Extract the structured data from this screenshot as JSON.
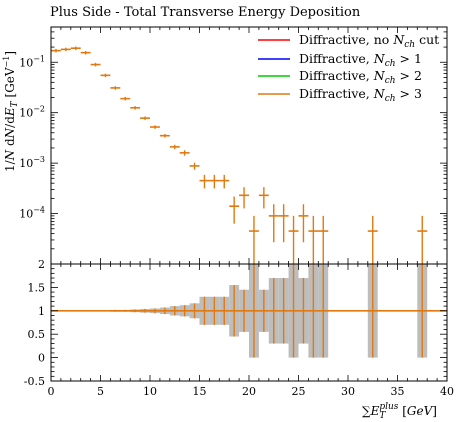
{
  "chart_data": {
    "type": "scatter",
    "title": "Plus Side - Total Transverse Energy Deposition",
    "xlabel": "∑E_T^plus [GeV]",
    "ylabel": "1/N dN/dE_T [GeV^-1]",
    "xlim": [
      0,
      40
    ],
    "ylim_main_log": [
      1e-05,
      0.5
    ],
    "ylim_ratio": [
      -0.5,
      2.0
    ],
    "x_ticks": [
      "0",
      "5",
      "10",
      "15",
      "20",
      "25",
      "30",
      "35",
      "40"
    ],
    "y_ticks_main": [
      "10^-4",
      "10^-3",
      "10^-2",
      "10^-1"
    ],
    "y_ticks_ratio": [
      "-0.5",
      "0",
      "0.5",
      "1",
      "1.5",
      "2"
    ],
    "legend_position": "top-right",
    "series": [
      {
        "name": "Diffractive, no N_ch cut",
        "color": "#ff0000"
      },
      {
        "name": "Diffractive, N_ch > 1",
        "color": "#0000ff"
      },
      {
        "name": "Diffractive, N_ch > 2",
        "color": "#00cc00"
      },
      {
        "name": "Diffractive, N_ch > 3",
        "color": "#e07a10"
      }
    ],
    "points": [
      {
        "x": 0.5,
        "y": 0.17,
        "rel_err": 0.0
      },
      {
        "x": 1.5,
        "y": 0.18,
        "rel_err": 0.0
      },
      {
        "x": 2.5,
        "y": 0.19,
        "rel_err": 0.0
      },
      {
        "x": 3.5,
        "y": 0.155,
        "rel_err": 0.0
      },
      {
        "x": 4.5,
        "y": 0.09,
        "rel_err": 0.01
      },
      {
        "x": 5.5,
        "y": 0.055,
        "rel_err": 0.01
      },
      {
        "x": 6.5,
        "y": 0.031,
        "rel_err": 0.02
      },
      {
        "x": 7.5,
        "y": 0.019,
        "rel_err": 0.02
      },
      {
        "x": 8.5,
        "y": 0.0125,
        "rel_err": 0.03
      },
      {
        "x": 9.5,
        "y": 0.0078,
        "rel_err": 0.04
      },
      {
        "x": 10.5,
        "y": 0.0052,
        "rel_err": 0.05
      },
      {
        "x": 11.5,
        "y": 0.0035,
        "rel_err": 0.07
      },
      {
        "x": 12.5,
        "y": 0.0021,
        "rel_err": 0.1
      },
      {
        "x": 13.5,
        "y": 0.0016,
        "rel_err": 0.12
      },
      {
        "x": 14.5,
        "y": 0.00088,
        "rel_err": 0.16
      },
      {
        "x": 15.5,
        "y": 0.00045,
        "rel_err": 0.3
      },
      {
        "x": 16.5,
        "y": 0.00045,
        "rel_err": 0.3
      },
      {
        "x": 17.5,
        "y": 0.00045,
        "rel_err": 0.3
      },
      {
        "x": 18.5,
        "y": 0.00014,
        "rel_err": 0.55
      },
      {
        "x": 19.5,
        "y": 0.00023,
        "rel_err": 0.45
      },
      {
        "x": 20.5,
        "y": 4.5e-05,
        "rel_err": 1.0
      },
      {
        "x": 21.5,
        "y": 0.00023,
        "rel_err": 0.45
      },
      {
        "x": 22.5,
        "y": 9e-05,
        "rel_err": 0.7
      },
      {
        "x": 23.5,
        "y": 9e-05,
        "rel_err": 0.7
      },
      {
        "x": 24.5,
        "y": 4.5e-05,
        "rel_err": 1.0
      },
      {
        "x": 25.5,
        "y": 9e-05,
        "rel_err": 0.7
      },
      {
        "x": 26.5,
        "y": 4.5e-05,
        "rel_err": 1.0
      },
      {
        "x": 27.5,
        "y": 4.5e-05,
        "rel_err": 1.0
      },
      {
        "x": 32.5,
        "y": 4.5e-05,
        "rel_err": 1.0
      },
      {
        "x": 37.5,
        "y": 4.5e-05,
        "rel_err": 1.0
      }
    ]
  }
}
